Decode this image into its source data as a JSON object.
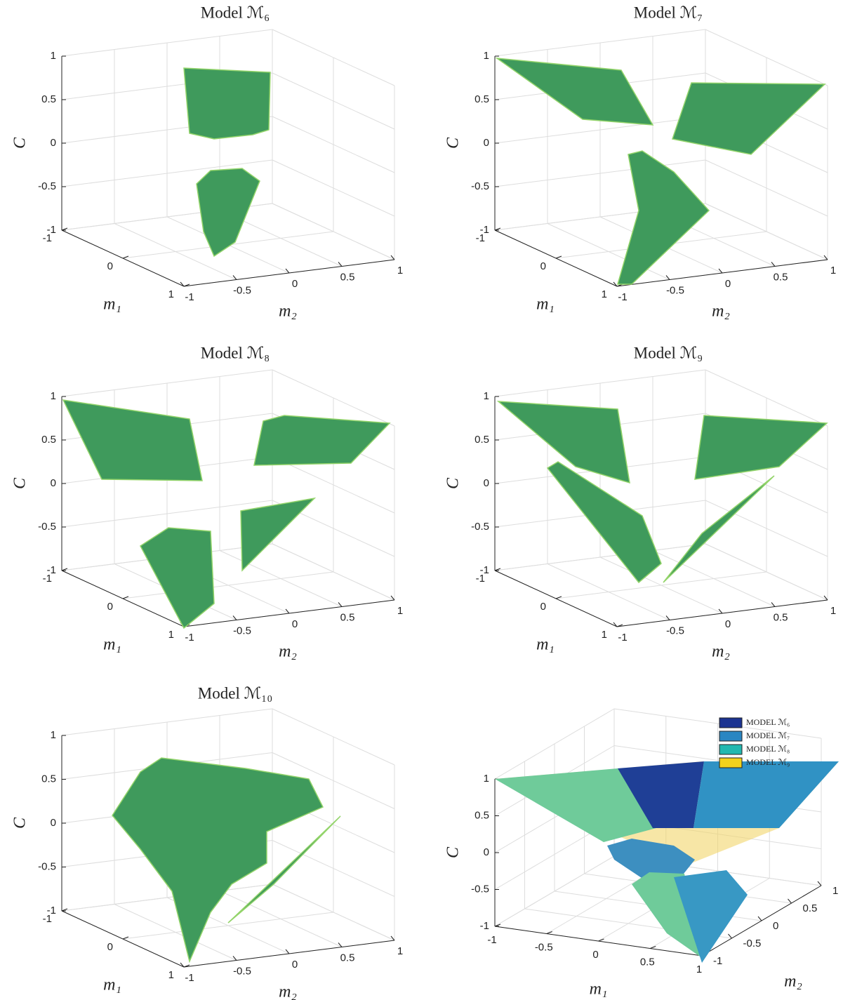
{
  "chart_data": [
    {
      "type": "surface3d",
      "title": "Model ℳ₆",
      "xlabel": "m₁",
      "ylabel": "m₂",
      "zlabel": "C",
      "xlim": [
        -1,
        1
      ],
      "ylim": [
        -1,
        1
      ],
      "zlim": [
        -1,
        1
      ],
      "xticks": [
        -1,
        0,
        1
      ],
      "yticks": [
        -1,
        -0.5,
        0,
        0.5,
        1
      ],
      "zticks": [
        -1,
        -0.5,
        0,
        0.5,
        1
      ],
      "grid": true,
      "color": "#3f9a5c"
    },
    {
      "type": "surface3d",
      "title": "Model ℳ₇",
      "xlabel": "m₁",
      "ylabel": "m₂",
      "zlabel": "C",
      "xlim": [
        -1,
        1
      ],
      "ylim": [
        -1,
        1
      ],
      "zlim": [
        -1,
        1
      ],
      "xticks": [
        -1,
        0,
        1
      ],
      "yticks": [
        -1,
        -0.5,
        0,
        0.5,
        1
      ],
      "zticks": [
        -1,
        -0.5,
        0,
        0.5,
        1
      ],
      "grid": true,
      "color": "#3f9a5c"
    },
    {
      "type": "surface3d",
      "title": "Model ℳ₈",
      "xlabel": "m₁",
      "ylabel": "m₂",
      "zlabel": "C",
      "xlim": [
        -1,
        1
      ],
      "ylim": [
        -1,
        1
      ],
      "zlim": [
        -1,
        1
      ],
      "xticks": [
        -1,
        0,
        1
      ],
      "yticks": [
        -1,
        -0.5,
        0,
        0.5,
        1
      ],
      "zticks": [
        -1,
        -0.5,
        0,
        0.5,
        1
      ],
      "grid": true,
      "color": "#3f9a5c"
    },
    {
      "type": "surface3d",
      "title": "Model ℳ₉",
      "xlabel": "m₁",
      "ylabel": "m₂",
      "zlabel": "C",
      "xlim": [
        -1,
        1
      ],
      "ylim": [
        -1,
        1
      ],
      "zlim": [
        -1,
        1
      ],
      "xticks": [
        -1,
        0,
        1
      ],
      "yticks": [
        -1,
        -0.5,
        0,
        0.5,
        1
      ],
      "zticks": [
        -1,
        -0.5,
        0,
        0.5,
        1
      ],
      "grid": true,
      "color": "#3f9a5c"
    },
    {
      "type": "surface3d",
      "title": "Model ℳ₁₀",
      "xlabel": "m₁",
      "ylabel": "m₂",
      "zlabel": "C",
      "xlim": [
        -1,
        1
      ],
      "ylim": [
        -1,
        1
      ],
      "zlim": [
        -1,
        1
      ],
      "xticks": [
        -1,
        0,
        1
      ],
      "yticks": [
        -1,
        -0.5,
        0,
        0.5,
        1
      ],
      "zticks": [
        -1,
        -0.5,
        0,
        0.5,
        1
      ],
      "grid": true,
      "color": "#3f9a5c"
    },
    {
      "type": "surface3d",
      "xlabel": "m₁",
      "ylabel": "m₂",
      "zlabel": "C",
      "xlim": [
        -1,
        1
      ],
      "ylim": [
        -1,
        1
      ],
      "zlim": [
        -1,
        1
      ],
      "xticks": [
        -1,
        -0.5,
        0,
        0.5,
        1
      ],
      "yticks": [
        -1,
        -0.5,
        0,
        0.5,
        1
      ],
      "zticks": [
        -1,
        -0.5,
        0,
        0.5,
        1
      ],
      "grid": true,
      "legend": "upper right",
      "series": [
        {
          "name": "MODEL ℳ₆",
          "color": "#1b3391"
        },
        {
          "name": "MODEL ℳ₇",
          "color": "#2a86c2"
        },
        {
          "name": "MODEL ℳ₈",
          "color": "#22b8b0"
        },
        {
          "name": "MODEL ℳ₉",
          "color": "#f2d21c"
        }
      ]
    }
  ]
}
